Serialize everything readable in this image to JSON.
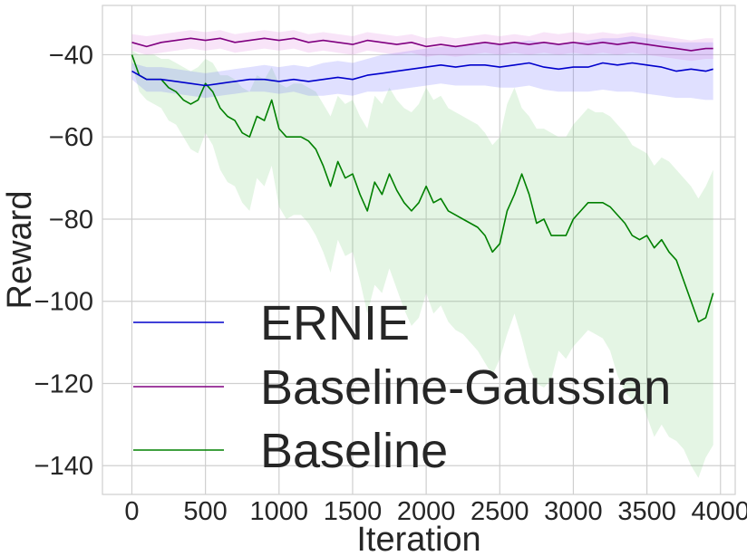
{
  "chart_data": {
    "type": "line",
    "title": "",
    "xlabel": "Iteration",
    "ylabel": "Reward",
    "xlim": [
      -200,
      4100
    ],
    "ylim": [
      -147,
      -28
    ],
    "xticks": [
      0,
      500,
      1000,
      1500,
      2000,
      2500,
      3000,
      3500,
      4000
    ],
    "xtick_labels": [
      "0",
      "500",
      "1000",
      "1500",
      "2000",
      "2500",
      "3000",
      "3500",
      "4000"
    ],
    "yticks": [
      -40,
      -60,
      -80,
      -100,
      -120,
      -140
    ],
    "ytick_labels": [
      "−40",
      "−60",
      "−80",
      "−100",
      "−120",
      "−140"
    ],
    "grid": true,
    "legend_position": "lower-left",
    "series": [
      {
        "name": "ERNIE",
        "color": "#0000cc",
        "fill": "#6666ff",
        "x": [
          0,
          100,
          200,
          300,
          400,
          500,
          600,
          700,
          800,
          900,
          1000,
          1100,
          1200,
          1300,
          1400,
          1500,
          1600,
          1700,
          1800,
          1900,
          2000,
          2100,
          2200,
          2300,
          2400,
          2500,
          2600,
          2700,
          2800,
          2900,
          3000,
          3100,
          3200,
          3300,
          3400,
          3500,
          3600,
          3700,
          3800,
          3900,
          3950
        ],
        "y": [
          -44,
          -46,
          -46,
          -46.5,
          -47,
          -47.5,
          -47,
          -46.5,
          -46,
          -46,
          -46.5,
          -46,
          -46.5,
          -46,
          -45.5,
          -46,
          -45,
          -44.5,
          -44,
          -43.5,
          -43,
          -42.5,
          -43,
          -42.5,
          -42.5,
          -43,
          -42.5,
          -42,
          -43,
          -43.5,
          -43,
          -43,
          -42,
          -42.5,
          -42,
          -42.5,
          -43,
          -44,
          -43.5,
          -44,
          -43.5
        ],
        "upper": [
          -42,
          -43,
          -43,
          -43.5,
          -44,
          -44.5,
          -44,
          -43.5,
          -43,
          -42.5,
          -43,
          -42.5,
          -43,
          -42,
          -41.5,
          -42,
          -41,
          -40,
          -39.5,
          -39,
          -38.5,
          -38,
          -38,
          -37.5,
          -37,
          -37.5,
          -37,
          -36.5,
          -37,
          -37.5,
          -37,
          -36.5,
          -36,
          -36,
          -35.5,
          -36,
          -36.5,
          -37,
          -37,
          -37,
          -37
        ],
        "lower": [
          -46,
          -49,
          -49,
          -49.5,
          -50,
          -50.5,
          -50,
          -49.5,
          -49,
          -49,
          -49.5,
          -49,
          -50,
          -50,
          -49.5,
          -50,
          -49,
          -49,
          -48.5,
          -48,
          -47.5,
          -47,
          -47.5,
          -47.5,
          -47.5,
          -48,
          -48,
          -47.5,
          -48.5,
          -49,
          -49,
          -49,
          -48.5,
          -49,
          -49,
          -49.5,
          -50,
          -50.5,
          -50.5,
          -51,
          -51
        ]
      },
      {
        "name": "Baseline-Gaussian",
        "color": "#800080",
        "fill": "#dd77dd",
        "x": [
          0,
          100,
          200,
          300,
          400,
          500,
          600,
          700,
          800,
          900,
          1000,
          1100,
          1200,
          1300,
          1400,
          1500,
          1600,
          1700,
          1800,
          1900,
          2000,
          2100,
          2200,
          2300,
          2400,
          2500,
          2600,
          2700,
          2800,
          2900,
          3000,
          3100,
          3200,
          3300,
          3400,
          3500,
          3600,
          3700,
          3800,
          3900,
          3950
        ],
        "y": [
          -37,
          -38,
          -37,
          -36.5,
          -36,
          -36.5,
          -36,
          -37,
          -36.5,
          -36,
          -36.5,
          -36,
          -37,
          -36.5,
          -37,
          -37.5,
          -36.5,
          -37,
          -37.5,
          -37,
          -38,
          -37.5,
          -38,
          -37.5,
          -37,
          -37.5,
          -37,
          -37.5,
          -37,
          -37.5,
          -37,
          -37.5,
          -37,
          -37.5,
          -37,
          -37.5,
          -38,
          -38.5,
          -39,
          -38.5,
          -38.5
        ],
        "upper": [
          -35,
          -35.5,
          -35,
          -34.5,
          -34,
          -34.5,
          -34,
          -35,
          -34.5,
          -34,
          -34.5,
          -34,
          -35,
          -34.5,
          -35,
          -35.5,
          -34.5,
          -35,
          -35.5,
          -35,
          -36,
          -35.5,
          -36,
          -35.5,
          -35,
          -35.5,
          -35,
          -35.5,
          -34.5,
          -35,
          -34.5,
          -35,
          -34.5,
          -35,
          -34.5,
          -35,
          -35.5,
          -36,
          -36.5,
          -36,
          -36
        ],
        "lower": [
          -39,
          -40,
          -39.5,
          -39,
          -38.5,
          -39,
          -38.5,
          -39.5,
          -39,
          -38.5,
          -39,
          -38.5,
          -39.5,
          -39,
          -39.5,
          -40,
          -39,
          -39.5,
          -40,
          -39.5,
          -40.5,
          -40,
          -40.5,
          -40,
          -39.5,
          -40,
          -39.5,
          -40,
          -39.5,
          -40,
          -39.5,
          -40,
          -39.5,
          -40,
          -39.5,
          -40,
          -40.5,
          -41,
          -41.5,
          -41,
          -41
        ]
      },
      {
        "name": "Baseline",
        "color": "#008000",
        "fill": "#77cc77",
        "x": [
          0,
          50,
          100,
          150,
          200,
          250,
          300,
          350,
          400,
          450,
          500,
          550,
          600,
          650,
          700,
          750,
          800,
          850,
          900,
          950,
          1000,
          1050,
          1100,
          1150,
          1200,
          1250,
          1300,
          1350,
          1400,
          1450,
          1500,
          1550,
          1600,
          1650,
          1700,
          1750,
          1800,
          1850,
          1900,
          1950,
          2000,
          2050,
          2100,
          2150,
          2200,
          2250,
          2300,
          2350,
          2400,
          2450,
          2500,
          2550,
          2600,
          2650,
          2700,
          2750,
          2800,
          2850,
          2900,
          2950,
          3000,
          3050,
          3100,
          3150,
          3200,
          3250,
          3300,
          3350,
          3400,
          3450,
          3500,
          3550,
          3600,
          3650,
          3700,
          3750,
          3800,
          3850,
          3900,
          3950
        ],
        "y": [
          -40,
          -45,
          -46,
          -46,
          -46,
          -48,
          -49,
          -51,
          -52,
          -51,
          -47,
          -49,
          -53,
          -55,
          -56,
          -59,
          -60,
          -55,
          -56,
          -51,
          -58,
          -60,
          -60,
          -60,
          -61,
          -63,
          -67,
          -72,
          -66,
          -70,
          -69,
          -74,
          -78,
          -71,
          -74,
          -69,
          -73,
          -76,
          -78,
          -76,
          -72,
          -76,
          -75,
          -78,
          -79,
          -80,
          -81,
          -82,
          -84,
          -88,
          -86,
          -78,
          -74,
          -69,
          -74,
          -81,
          -80,
          -84,
          -84,
          -84,
          -80,
          -78,
          -76,
          -76,
          -76,
          -77,
          -79,
          -81,
          -84,
          -85,
          -84,
          -87,
          -85,
          -88,
          -90,
          -95,
          -100,
          -105,
          -104,
          -98
        ],
        "upper": [
          -39,
          -40,
          -40,
          -40,
          -41,
          -41,
          -42,
          -43,
          -44,
          -43,
          -41,
          -42,
          -45,
          -45,
          -46,
          -48,
          -49,
          -45,
          -46,
          -43,
          -47,
          -48,
          -47,
          -47,
          -48,
          -49,
          -52,
          -55,
          -50,
          -52,
          -51,
          -55,
          -58,
          -50,
          -52,
          -48,
          -51,
          -53,
          -54,
          -52,
          -48,
          -51,
          -50,
          -53,
          -54,
          -55,
          -56,
          -57,
          -59,
          -62,
          -60,
          -52,
          -48,
          -53,
          -55,
          -58,
          -58,
          -59,
          -60,
          -60,
          -57,
          -55,
          -53,
          -54,
          -54,
          -55,
          -57,
          -59,
          -62,
          -63,
          -64,
          -67,
          -65,
          -66,
          -68,
          -70,
          -72,
          -75,
          -72,
          -68
        ],
        "lower": [
          -42,
          -49,
          -51,
          -52,
          -53,
          -56,
          -57,
          -60,
          -63,
          -64,
          -59,
          -62,
          -68,
          -71,
          -72,
          -76,
          -78,
          -70,
          -72,
          -67,
          -77,
          -80,
          -79,
          -79,
          -81,
          -84,
          -88,
          -93,
          -85,
          -89,
          -88,
          -95,
          -103,
          -96,
          -98,
          -92,
          -97,
          -102,
          -106,
          -104,
          -98,
          -103,
          -101,
          -105,
          -107,
          -108,
          -110,
          -112,
          -115,
          -118,
          -114,
          -108,
          -103,
          -109,
          -116,
          -120,
          -121,
          -119,
          -112,
          -114,
          -111,
          -109,
          -107,
          -108,
          -109,
          -112,
          -118,
          -122,
          -124,
          -123,
          -128,
          -133,
          -130,
          -133,
          -134,
          -136,
          -140,
          -143,
          -138,
          -135
        ]
      }
    ]
  }
}
